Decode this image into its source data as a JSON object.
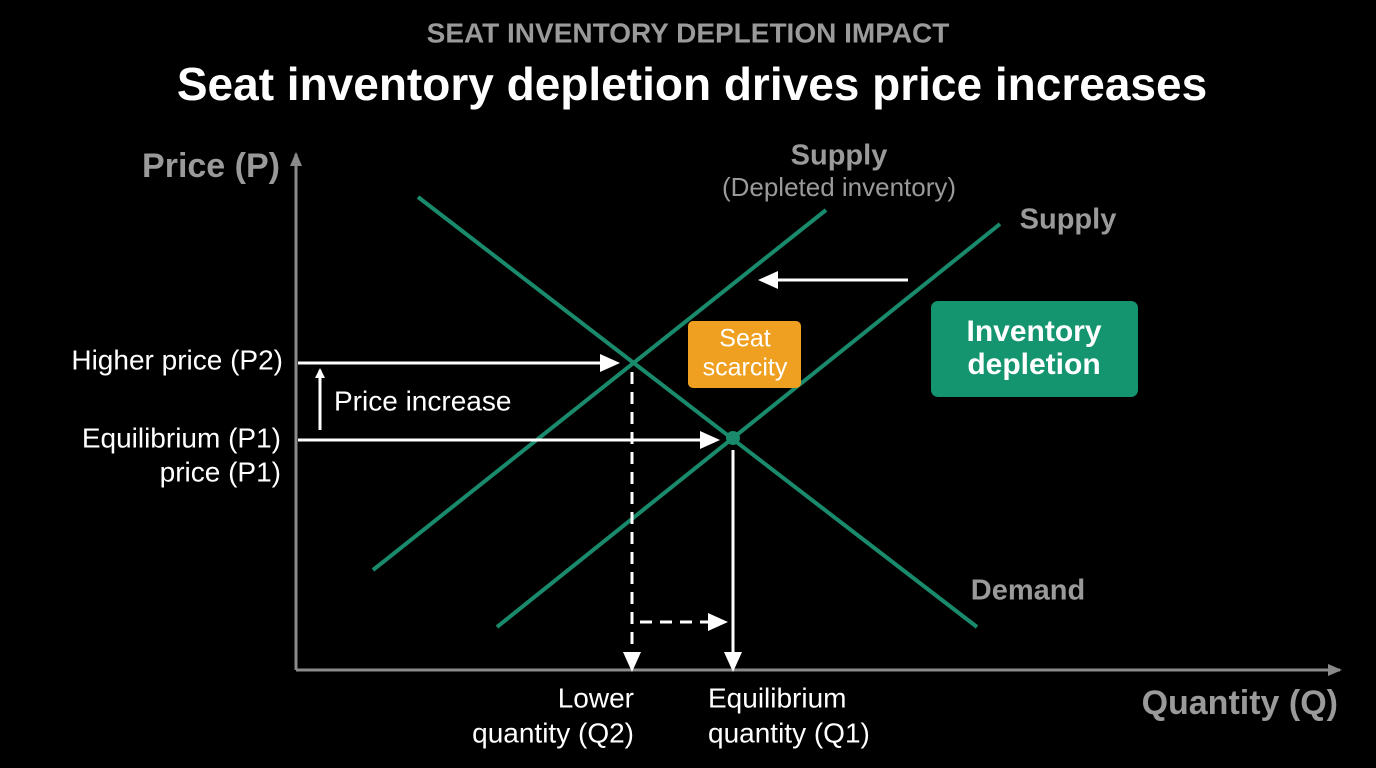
{
  "header": {
    "eyebrow": "SEAT INVENTORY DEPLETION IMPACT",
    "title": "Seat inventory depletion drives price increases"
  },
  "axes": {
    "y_label": "Price (P)",
    "x_label": "Quantity (Q)"
  },
  "curves": {
    "supply_depleted": {
      "label": [
        "Supply",
        "(Depleted inventory)"
      ]
    },
    "supply": {
      "label": "Supply"
    },
    "demand": {
      "label": "Demand"
    }
  },
  "price_labels": {
    "higher": "Higher price (P2)",
    "equilibrium": [
      "Equilibrium (P1)",
      "price (P1)"
    ],
    "change": "Price increase"
  },
  "quantity_labels": {
    "lower": [
      "Lower",
      "quantity (Q2)"
    ],
    "equilibrium": [
      "Equilibrium",
      "quantity (Q1)"
    ]
  },
  "callouts": {
    "seat_scarcity": [
      "Seat",
      "scarcity"
    ],
    "inventory_depletion": [
      "Inventory",
      "depletion"
    ]
  }
}
